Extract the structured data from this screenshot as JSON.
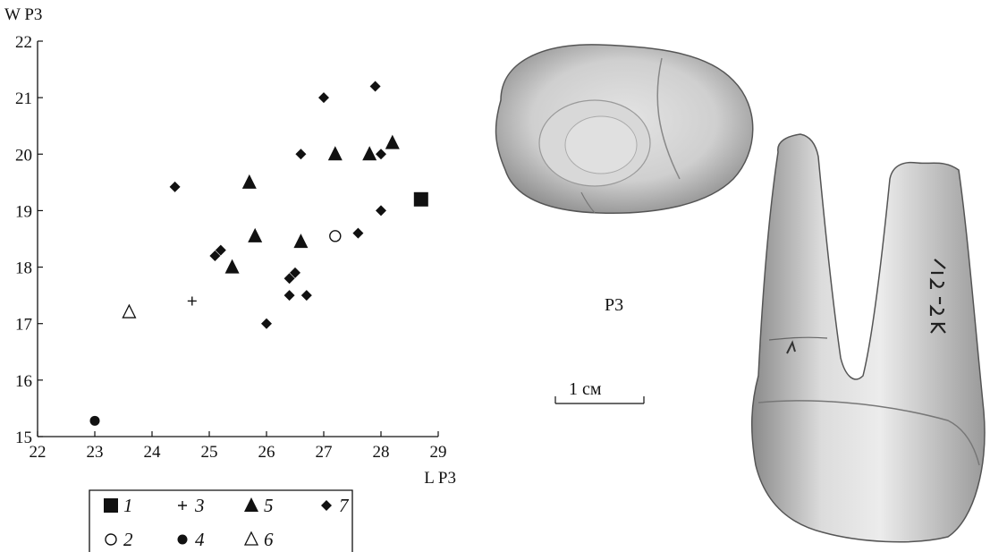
{
  "chart_data": {
    "type": "scatter",
    "xlabel": "L P3",
    "ylabel": "W P3",
    "xlim": [
      22,
      29
    ],
    "ylim": [
      15,
      22
    ],
    "xticks": [
      22,
      23,
      24,
      25,
      26,
      27,
      28,
      29
    ],
    "yticks": [
      15,
      16,
      17,
      18,
      19,
      20,
      21,
      22
    ],
    "grid": false,
    "legend_position": "bottom",
    "series": [
      {
        "name": "1",
        "marker": "filled-square",
        "points": [
          [
            28.7,
            19.2
          ]
        ]
      },
      {
        "name": "2",
        "marker": "open-circle",
        "points": [
          [
            27.2,
            18.55
          ]
        ]
      },
      {
        "name": "3",
        "marker": "plus",
        "points": [
          [
            24.7,
            17.4
          ]
        ]
      },
      {
        "name": "4",
        "marker": "filled-circle",
        "points": [
          [
            23.0,
            15.28
          ]
        ]
      },
      {
        "name": "5",
        "marker": "filled-triangle",
        "points": [
          [
            25.7,
            19.5
          ],
          [
            27.2,
            20.0
          ],
          [
            27.8,
            20.0
          ],
          [
            28.2,
            20.2
          ],
          [
            25.8,
            18.55
          ],
          [
            26.6,
            18.45
          ],
          [
            25.4,
            18.0
          ]
        ]
      },
      {
        "name": "6",
        "marker": "open-triangle",
        "points": [
          [
            23.6,
            17.2
          ]
        ]
      },
      {
        "name": "7",
        "marker": "filled-diamond",
        "points": [
          [
            24.4,
            19.42
          ],
          [
            27.0,
            21.0
          ],
          [
            27.9,
            21.2
          ],
          [
            26.6,
            20.0
          ],
          [
            28.0,
            20.0
          ],
          [
            28.0,
            19.0
          ],
          [
            27.6,
            18.6
          ],
          [
            25.2,
            18.3
          ],
          [
            25.1,
            18.2
          ],
          [
            26.5,
            17.9
          ],
          [
            26.4,
            17.8
          ],
          [
            26.4,
            17.5
          ],
          [
            26.7,
            17.5
          ],
          [
            26.0,
            17.0
          ]
        ]
      }
    ]
  },
  "figure": {
    "photo_label": "P3",
    "scale_label": "1 см"
  }
}
